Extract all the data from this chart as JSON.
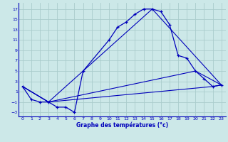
{
  "xlabel": "Graphe des températures (°c)",
  "background_color": "#cce8e8",
  "grid_color": "#aacccc",
  "line_color": "#0000bb",
  "xlim": [
    -0.5,
    23.5
  ],
  "ylim": [
    -3.8,
    18.2
  ],
  "xticks": [
    0,
    1,
    2,
    3,
    4,
    5,
    6,
    7,
    8,
    9,
    10,
    11,
    12,
    13,
    14,
    15,
    16,
    17,
    18,
    19,
    20,
    21,
    22,
    23
  ],
  "yticks": [
    -3,
    -1,
    1,
    3,
    5,
    7,
    9,
    11,
    13,
    15,
    17
  ],
  "line1_x": [
    0,
    1,
    2,
    3,
    4,
    5,
    6,
    7,
    10,
    11,
    12,
    13,
    14,
    15,
    16,
    17,
    18,
    19,
    20,
    21,
    22,
    23
  ],
  "line1_y": [
    2,
    -0.5,
    -1,
    -1,
    -2,
    -2,
    -3,
    5,
    11,
    13.5,
    14.5,
    16,
    17,
    17,
    16.5,
    14,
    8,
    7.5,
    5,
    3.5,
    2,
    2.3
  ],
  "line2_x": [
    0,
    3,
    15,
    23
  ],
  "line2_y": [
    2,
    -1,
    17,
    2.3
  ],
  "line3_x": [
    0,
    3,
    20,
    23
  ],
  "line3_y": [
    2,
    -1,
    5,
    2.3
  ],
  "line4_x": [
    0,
    3,
    22,
    23
  ],
  "line4_y": [
    2,
    -1,
    2,
    2.3
  ]
}
